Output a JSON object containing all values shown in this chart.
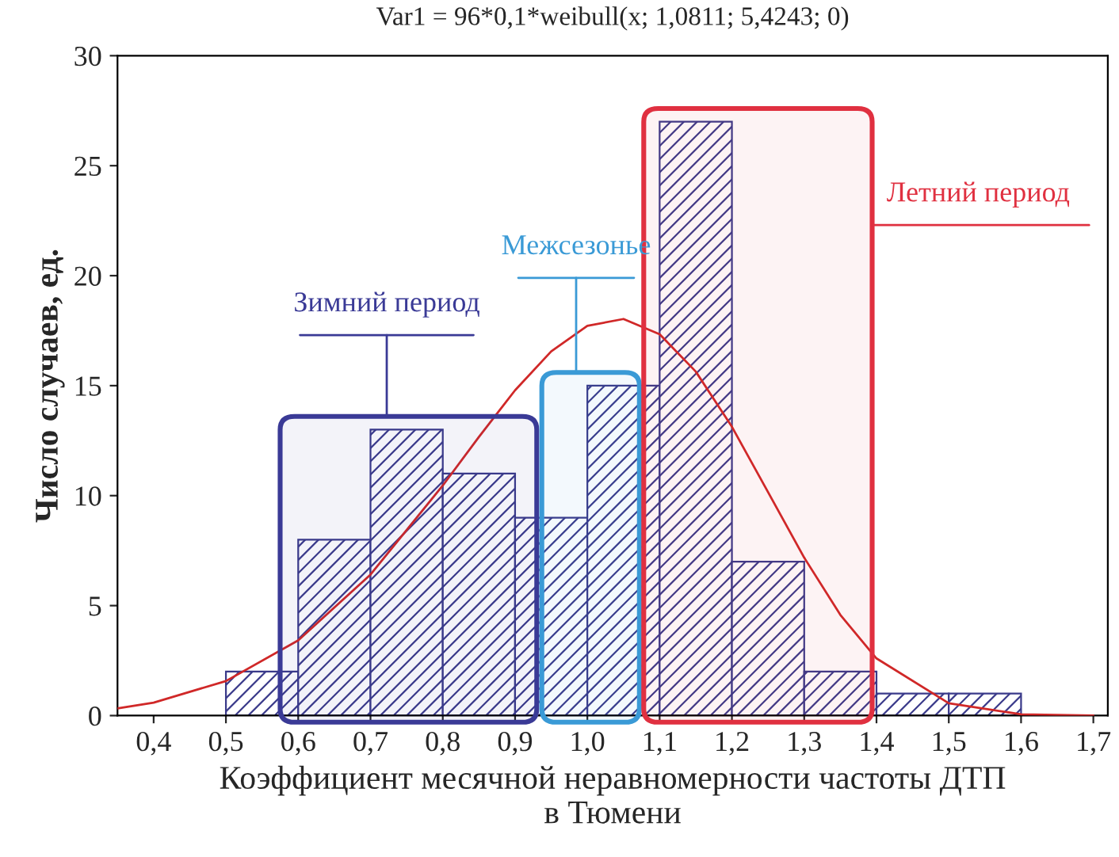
{
  "chart_data": {
    "type": "histogram",
    "title": "Var1 = 96*0,1*weibull(x; 1,0811; 5,4243; 0)",
    "xlabel": "Коэффициент месячной неравномерности частоты ДТП\nв Тюмени",
    "ylabel": "Число случаев, ед.",
    "series": [
      {
        "color": "#3a3a8a",
        "bins": [
          0.5,
          0.6,
          0.7,
          0.8,
          0.9,
          1.0,
          1.1,
          1.2,
          1.3,
          1.4,
          1.5,
          1.6
        ],
        "values": [
          2,
          8,
          13,
          11,
          9,
          15,
          27,
          7,
          2,
          1,
          1
        ]
      },
      {
        "type": "line",
        "color": "#d02828",
        "x": [
          0.35,
          0.4,
          0.5,
          0.6,
          0.7,
          0.8,
          0.85,
          0.9,
          0.95,
          1.0,
          1.05,
          1.1,
          1.15,
          1.2,
          1.25,
          1.3,
          1.35,
          1.4,
          1.5,
          1.6,
          1.7
        ],
        "values": [
          0.33,
          0.59,
          1.57,
          3.42,
          6.41,
          10.46,
          12.67,
          14.79,
          16.56,
          17.72,
          18.03,
          17.34,
          15.64,
          13.13,
          10.16,
          7.18,
          4.58,
          2.6,
          0.56,
          0.06,
          0.0
        ]
      }
    ],
    "bands": [
      {
        "axis": "x",
        "from": 0.575,
        "to": 0.93,
        "label": "Зимний период",
        "color": "#3a3a96"
      },
      {
        "axis": "x",
        "from": 0.937,
        "to": 1.072,
        "label": "Межсезонье",
        "color": "#3a9ad6"
      },
      {
        "axis": "x",
        "from": 1.078,
        "to": 1.394,
        "label": "Летний период",
        "color": "#e03040"
      }
    ],
    "xlim": [
      0.35,
      1.72
    ],
    "ylim": [
      0,
      30
    ],
    "xticks": [
      {
        "value": 0.4,
        "label": "0,4"
      },
      {
        "value": 0.5,
        "label": "0,5"
      },
      {
        "value": 0.6,
        "label": "0,6"
      },
      {
        "value": 0.7,
        "label": "0,7"
      },
      {
        "value": 0.8,
        "label": "0,8"
      },
      {
        "value": 0.9,
        "label": "0,9"
      },
      {
        "value": 1.0,
        "label": "1,0"
      },
      {
        "value": 1.1,
        "label": "1,1"
      },
      {
        "value": 1.2,
        "label": "1,2"
      },
      {
        "value": 1.3,
        "label": "1,3"
      },
      {
        "value": 1.4,
        "label": "1,4"
      },
      {
        "value": 1.5,
        "label": "1,5"
      },
      {
        "value": 1.6,
        "label": "1,6"
      },
      {
        "value": 1.7,
        "label": "1,7"
      }
    ],
    "yticks": [
      0,
      5,
      10,
      15,
      20,
      25,
      30
    ],
    "grid": false
  }
}
